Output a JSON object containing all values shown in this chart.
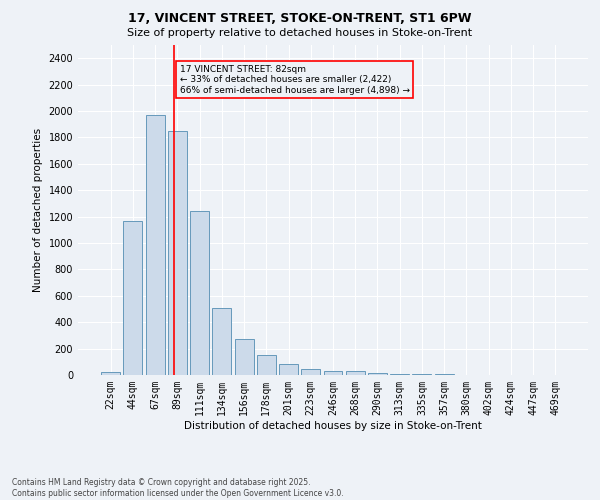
{
  "title1": "17, VINCENT STREET, STOKE-ON-TRENT, ST1 6PW",
  "title2": "Size of property relative to detached houses in Stoke-on-Trent",
  "xlabel": "Distribution of detached houses by size in Stoke-on-Trent",
  "ylabel": "Number of detached properties",
  "categories": [
    "22sqm",
    "44sqm",
    "67sqm",
    "89sqm",
    "111sqm",
    "134sqm",
    "156sqm",
    "178sqm",
    "201sqm",
    "223sqm",
    "246sqm",
    "268sqm",
    "290sqm",
    "313sqm",
    "335sqm",
    "357sqm",
    "380sqm",
    "402sqm",
    "424sqm",
    "447sqm",
    "469sqm"
  ],
  "values": [
    22,
    1170,
    1970,
    1850,
    1240,
    510,
    270,
    155,
    85,
    45,
    32,
    28,
    15,
    8,
    5,
    4,
    3,
    2,
    2,
    1,
    1
  ],
  "bar_color": "#ccdaea",
  "bar_edge_color": "#6699bb",
  "vline_color": "red",
  "vline_pos": 2.85,
  "annotation_text": "17 VINCENT STREET: 82sqm\n← 33% of detached houses are smaller (2,422)\n66% of semi-detached houses are larger (4,898) →",
  "annotation_box_color": "red",
  "ylim": [
    0,
    2500
  ],
  "yticks": [
    0,
    200,
    400,
    600,
    800,
    1000,
    1200,
    1400,
    1600,
    1800,
    2000,
    2200,
    2400
  ],
  "footnote": "Contains HM Land Registry data © Crown copyright and database right 2025.\nContains public sector information licensed under the Open Government Licence v3.0.",
  "bg_color": "#eef2f7",
  "grid_color": "#ffffff",
  "title_fontsize": 9,
  "subtitle_fontsize": 8,
  "axis_label_fontsize": 7.5,
  "tick_fontsize": 7,
  "annot_fontsize": 6.5,
  "footnote_fontsize": 5.5
}
